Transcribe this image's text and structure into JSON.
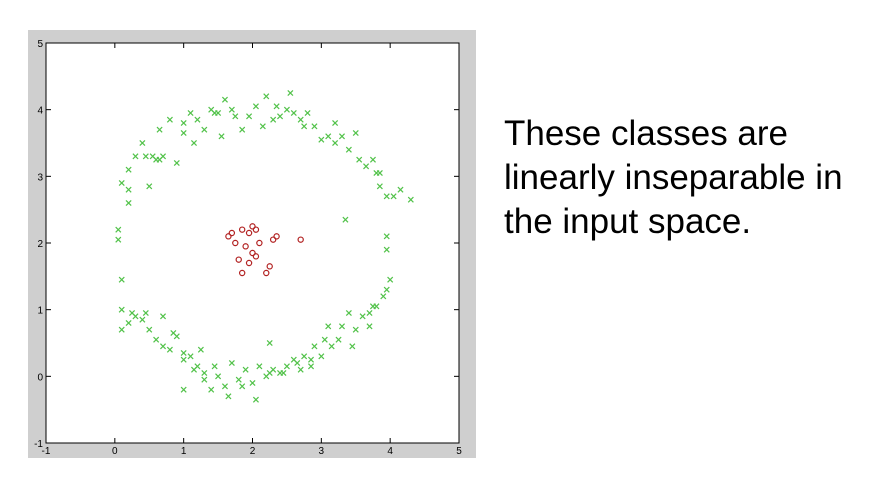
{
  "caption": {
    "lines": [
      "These classes are",
      "linearly inseparable in",
      "the input space."
    ]
  },
  "colors": {
    "outer_class": "#52c24a",
    "inner_class": "#b22222",
    "frame": "#cfcfcf"
  },
  "chart_data": {
    "type": "scatter",
    "xlim": [
      -1,
      5
    ],
    "ylim": [
      -1,
      5
    ],
    "xticks": [
      -1,
      0,
      1,
      2,
      3,
      4,
      5
    ],
    "yticks": [
      -1,
      0,
      1,
      2,
      3,
      4,
      5
    ],
    "grid": false,
    "series": [
      {
        "marker": "x",
        "color": "#52c24a",
        "points": [
          [
            0.05,
            2.05
          ],
          [
            0.05,
            2.2
          ],
          [
            0.1,
            2.9
          ],
          [
            0.2,
            2.6
          ],
          [
            0.2,
            3.1
          ],
          [
            0.2,
            2.8
          ],
          [
            0.3,
            3.3
          ],
          [
            0.4,
            3.5
          ],
          [
            0.45,
            3.3
          ],
          [
            0.5,
            2.85
          ],
          [
            0.55,
            3.3
          ],
          [
            0.6,
            3.25
          ],
          [
            0.65,
            3.7
          ],
          [
            0.7,
            3.3
          ],
          [
            0.8,
            3.85
          ],
          [
            0.9,
            3.2
          ],
          [
            1.0,
            3.65
          ],
          [
            1.0,
            3.8
          ],
          [
            1.1,
            3.95
          ],
          [
            1.15,
            3.5
          ],
          [
            1.2,
            3.85
          ],
          [
            1.3,
            3.7
          ],
          [
            1.4,
            4.0
          ],
          [
            1.5,
            3.95
          ],
          [
            1.55,
            3.6
          ],
          [
            1.6,
            4.15
          ],
          [
            1.7,
            4.0
          ],
          [
            1.75,
            3.9
          ],
          [
            1.85,
            3.7
          ],
          [
            1.95,
            3.9
          ],
          [
            2.05,
            4.05
          ],
          [
            2.15,
            3.75
          ],
          [
            2.2,
            4.2
          ],
          [
            2.3,
            3.85
          ],
          [
            2.35,
            4.05
          ],
          [
            2.4,
            3.9
          ],
          [
            2.5,
            4.0
          ],
          [
            2.55,
            4.25
          ],
          [
            2.6,
            3.95
          ],
          [
            2.7,
            3.85
          ],
          [
            2.8,
            3.95
          ],
          [
            2.9,
            3.75
          ],
          [
            3.0,
            3.55
          ],
          [
            3.1,
            3.6
          ],
          [
            3.2,
            3.8
          ],
          [
            3.3,
            3.6
          ],
          [
            3.4,
            3.4
          ],
          [
            3.5,
            3.65
          ],
          [
            3.55,
            3.25
          ],
          [
            3.65,
            3.15
          ],
          [
            3.75,
            3.25
          ],
          [
            3.8,
            3.05
          ],
          [
            3.85,
            2.85
          ],
          [
            3.95,
            2.7
          ],
          [
            4.05,
            2.7
          ],
          [
            4.15,
            2.8
          ],
          [
            4.3,
            2.65
          ],
          [
            3.35,
            2.35
          ],
          [
            3.95,
            2.1
          ],
          [
            3.95,
            1.9
          ],
          [
            4.0,
            1.45
          ],
          [
            3.95,
            1.3
          ],
          [
            3.9,
            1.2
          ],
          [
            3.75,
            1.05
          ],
          [
            3.7,
            0.95
          ],
          [
            3.6,
            0.9
          ],
          [
            3.5,
            0.7
          ],
          [
            3.4,
            0.95
          ],
          [
            3.3,
            0.75
          ],
          [
            3.25,
            0.55
          ],
          [
            3.15,
            0.45
          ],
          [
            3.05,
            0.55
          ],
          [
            3.0,
            0.3
          ],
          [
            2.9,
            0.45
          ],
          [
            2.85,
            0.25
          ],
          [
            2.75,
            0.3
          ],
          [
            2.7,
            0.1
          ],
          [
            2.6,
            0.25
          ],
          [
            2.5,
            0.15
          ],
          [
            2.4,
            0.05
          ],
          [
            2.3,
            0.1
          ],
          [
            2.2,
            0.0
          ],
          [
            2.1,
            0.15
          ],
          [
            2.0,
            -0.1
          ],
          [
            1.9,
            0.1
          ],
          [
            1.8,
            -0.05
          ],
          [
            1.7,
            0.2
          ],
          [
            1.6,
            -0.15
          ],
          [
            1.5,
            0.0
          ],
          [
            1.4,
            -0.2
          ],
          [
            1.3,
            0.05
          ],
          [
            1.2,
            0.15
          ],
          [
            1.1,
            0.3
          ],
          [
            1.0,
            0.35
          ],
          [
            0.9,
            0.6
          ],
          [
            0.8,
            0.4
          ],
          [
            0.7,
            0.45
          ],
          [
            0.6,
            0.55
          ],
          [
            0.5,
            0.7
          ],
          [
            0.4,
            0.85
          ],
          [
            0.3,
            0.9
          ],
          [
            0.2,
            0.8
          ],
          [
            0.1,
            1.0
          ],
          [
            0.1,
            0.7
          ],
          [
            0.1,
            1.45
          ],
          [
            0.25,
            0.95
          ],
          [
            0.45,
            0.95
          ],
          [
            0.7,
            0.9
          ],
          [
            0.85,
            0.65
          ],
          [
            1.0,
            0.25
          ],
          [
            1.15,
            0.1
          ],
          [
            1.3,
            -0.05
          ],
          [
            1.45,
            0.15
          ],
          [
            1.65,
            -0.3
          ],
          [
            1.85,
            -0.15
          ],
          [
            2.05,
            -0.35
          ],
          [
            2.25,
            0.05
          ],
          [
            2.45,
            0.05
          ],
          [
            2.65,
            0.2
          ],
          [
            2.85,
            0.15
          ],
          [
            1.0,
            -0.2
          ],
          [
            1.25,
            0.4
          ],
          [
            2.25,
            0.5
          ],
          [
            3.1,
            0.75
          ],
          [
            3.45,
            0.45
          ],
          [
            3.7,
            0.75
          ],
          [
            3.8,
            1.05
          ],
          [
            1.45,
            3.95
          ],
          [
            2.75,
            3.75
          ],
          [
            3.2,
            3.5
          ],
          [
            3.85,
            3.05
          ],
          [
            0.65,
            3.25
          ]
        ]
      },
      {
        "marker": "o",
        "color": "#b22222",
        "points": [
          [
            1.65,
            2.1
          ],
          [
            1.75,
            2.0
          ],
          [
            1.85,
            2.2
          ],
          [
            1.9,
            1.95
          ],
          [
            1.95,
            2.15
          ],
          [
            2.0,
            2.25
          ],
          [
            2.05,
            2.2
          ],
          [
            2.1,
            2.0
          ],
          [
            2.0,
            1.85
          ],
          [
            1.95,
            1.7
          ],
          [
            2.05,
            1.8
          ],
          [
            1.85,
            1.55
          ],
          [
            2.2,
            1.55
          ],
          [
            2.25,
            1.65
          ],
          [
            2.3,
            2.05
          ],
          [
            2.35,
            2.1
          ],
          [
            2.7,
            2.05
          ],
          [
            1.8,
            1.75
          ],
          [
            1.7,
            2.15
          ]
        ]
      }
    ]
  }
}
